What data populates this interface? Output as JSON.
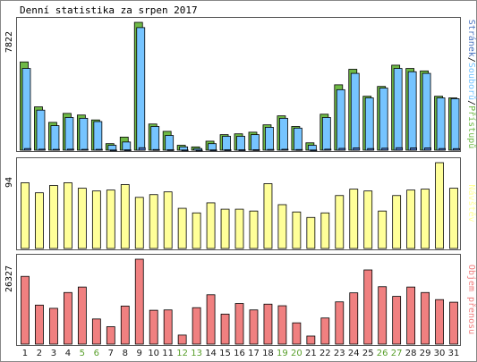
{
  "chart_data": {
    "type": "bar",
    "title": "Denní statistika za srpen 2017",
    "categories": [
      "1",
      "2",
      "3",
      "4",
      "5",
      "6",
      "7",
      "8",
      "9",
      "10",
      "11",
      "12",
      "13",
      "14",
      "15",
      "16",
      "17",
      "18",
      "19",
      "20",
      "21",
      "22",
      "23",
      "24",
      "25",
      "26",
      "27",
      "28",
      "29",
      "30",
      "31"
    ],
    "weekend_days": [
      "5",
      "6",
      "12",
      "13",
      "19",
      "20",
      "26",
      "27"
    ],
    "panels": [
      {
        "name": "pristupy",
        "side_label": "Stránek/Souborů/Přístupů",
        "side_label_parts": [
          "Stránek",
          "/",
          "Souborů",
          "/",
          "Přístupů"
        ],
        "ymax_label": "7822",
        "ymax": 7822,
        "series": [
          {
            "name": "Přístupů",
            "values": [
              5400,
              2650,
              1700,
              2250,
              2150,
              1850,
              400,
              800,
              7822,
              1600,
              1150,
              300,
              200,
              550,
              950,
              1000,
              1100,
              1550,
              2100,
              1450,
              450,
              2200,
              4000,
              4950,
              3300,
              3900,
              5200,
              5000,
              4850,
              3300,
              3200
            ]
          },
          {
            "name": "Souborů",
            "values": [
              5000,
              2450,
              1500,
              2000,
              1950,
              1750,
              300,
              500,
              7500,
              1450,
              900,
              200,
              100,
              400,
              850,
              850,
              950,
              1400,
              1950,
              1350,
              300,
              2000,
              3700,
              4700,
              3200,
              3800,
              5000,
              4800,
              4700,
              3200,
              3150
            ]
          },
          {
            "name": "Stránek",
            "values": [
              100,
              60,
              50,
              60,
              50,
              50,
              10,
              20,
              150,
              40,
              30,
              10,
              5,
              15,
              25,
              25,
              30,
              45,
              55,
              40,
              10,
              60,
              110,
              140,
              100,
              120,
              150,
              140,
              140,
              100,
              95
            ]
          }
        ]
      },
      {
        "name": "navstevy",
        "side_label": "Návštěv",
        "ymax_label": "94",
        "ymax": 94,
        "series": [
          {
            "name": "Návštěv",
            "values": [
              72,
              61,
              69,
              72,
              66,
              63,
              64,
              70,
              56,
              59,
              62,
              44,
              39,
              50,
              43,
              43,
              41,
              71,
              48,
              40,
              34,
              39,
              58,
              65,
              63,
              41,
              58,
              64,
              65,
              94,
              66
            ]
          }
        ]
      },
      {
        "name": "objem",
        "side_label": "Objem přenosu",
        "ymax_label": "26327",
        "ymax": 26327,
        "series": [
          {
            "name": "Objem přenosu",
            "values": [
              21000,
              12100,
              11100,
              16000,
              17700,
              7800,
              5400,
              11800,
              26327,
              10500,
              10600,
              2800,
              11300,
              15300,
              9300,
              12600,
              10600,
              12400,
              11900,
              6600,
              2500,
              8100,
              13100,
              15900,
              23000,
              17800,
              14800,
              17700,
              16000,
              13800,
              13000
            ]
          }
        ]
      }
    ],
    "colors": {
      "pristupy": "#6fb946",
      "soubory": "#76c4ff",
      "stranek": "#4a74c0",
      "navstevy": "#ffff99",
      "objem": "#f08080",
      "weekday_label": "#1a1a1a",
      "weekend_label": "#5aa02c",
      "panel_border": "#555555",
      "bar_outline": "#000000"
    },
    "grid": false
  }
}
